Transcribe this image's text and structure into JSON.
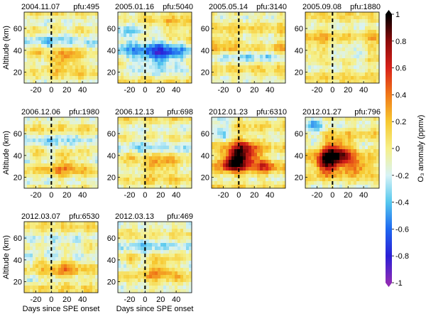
{
  "chart_data": {
    "type": "heatmap",
    "y_axis_label": "Altitude (km)",
    "x_axis_label": "Days since SPE onset",
    "x_ticks": [
      "-20",
      "0",
      "20",
      "40"
    ],
    "y_ticks": [
      "20",
      "40",
      "60"
    ],
    "x_range": [
      -35,
      60
    ],
    "y_range": [
      10,
      75
    ],
    "onset_marker_day": 0,
    "colorbar": {
      "label": "O₃ anomaly (ppmv)",
      "min": -1,
      "max": 1,
      "ticks": [
        "1",
        "0.8",
        "0.6",
        "0.4",
        "0.2",
        "0",
        "-0.2",
        "-0.4",
        "-0.6",
        "-0.8",
        "-1"
      ],
      "colors": [
        "#8e2bb5",
        "#2b1fd6",
        "#1e68f0",
        "#56c8ee",
        "#d8f3f6",
        "#f6f08a",
        "#f7c931",
        "#f07818",
        "#d8221a",
        "#8c0a0a",
        "#000000"
      ]
    },
    "panels": [
      {
        "date": "2004.11.07",
        "pfu": "pfu:495",
        "pattern": "mixed",
        "strength": 0.55
      },
      {
        "date": "2005.01.16",
        "pfu": "pfu:5040",
        "pattern": "depletion",
        "strength": 0.7
      },
      {
        "date": "2005.05.14",
        "pfu": "pfu:3140",
        "pattern": "weak",
        "strength": 0.2
      },
      {
        "date": "2005.09.08",
        "pfu": "pfu:1880",
        "pattern": "weak",
        "strength": 0.25
      },
      {
        "date": "2006.12.06",
        "pfu": "pfu:1980",
        "pattern": "mixed",
        "strength": 0.5
      },
      {
        "date": "2006.12.13",
        "pfu": "pfu:698",
        "pattern": "mixed",
        "strength": 0.5
      },
      {
        "date": "2012.01.23",
        "pfu": "pfu:6310",
        "pattern": "enhancement",
        "strength": 0.85
      },
      {
        "date": "2012.01.27",
        "pfu": "pfu:796",
        "pattern": "enhancement",
        "strength": 0.85
      },
      {
        "date": "2012.03.07",
        "pfu": "pfu:6530",
        "pattern": "mixed",
        "strength": 0.5
      },
      {
        "date": "2012.03.13",
        "pfu": "pfu:469",
        "pattern": "mixed",
        "strength": 0.5
      }
    ]
  }
}
